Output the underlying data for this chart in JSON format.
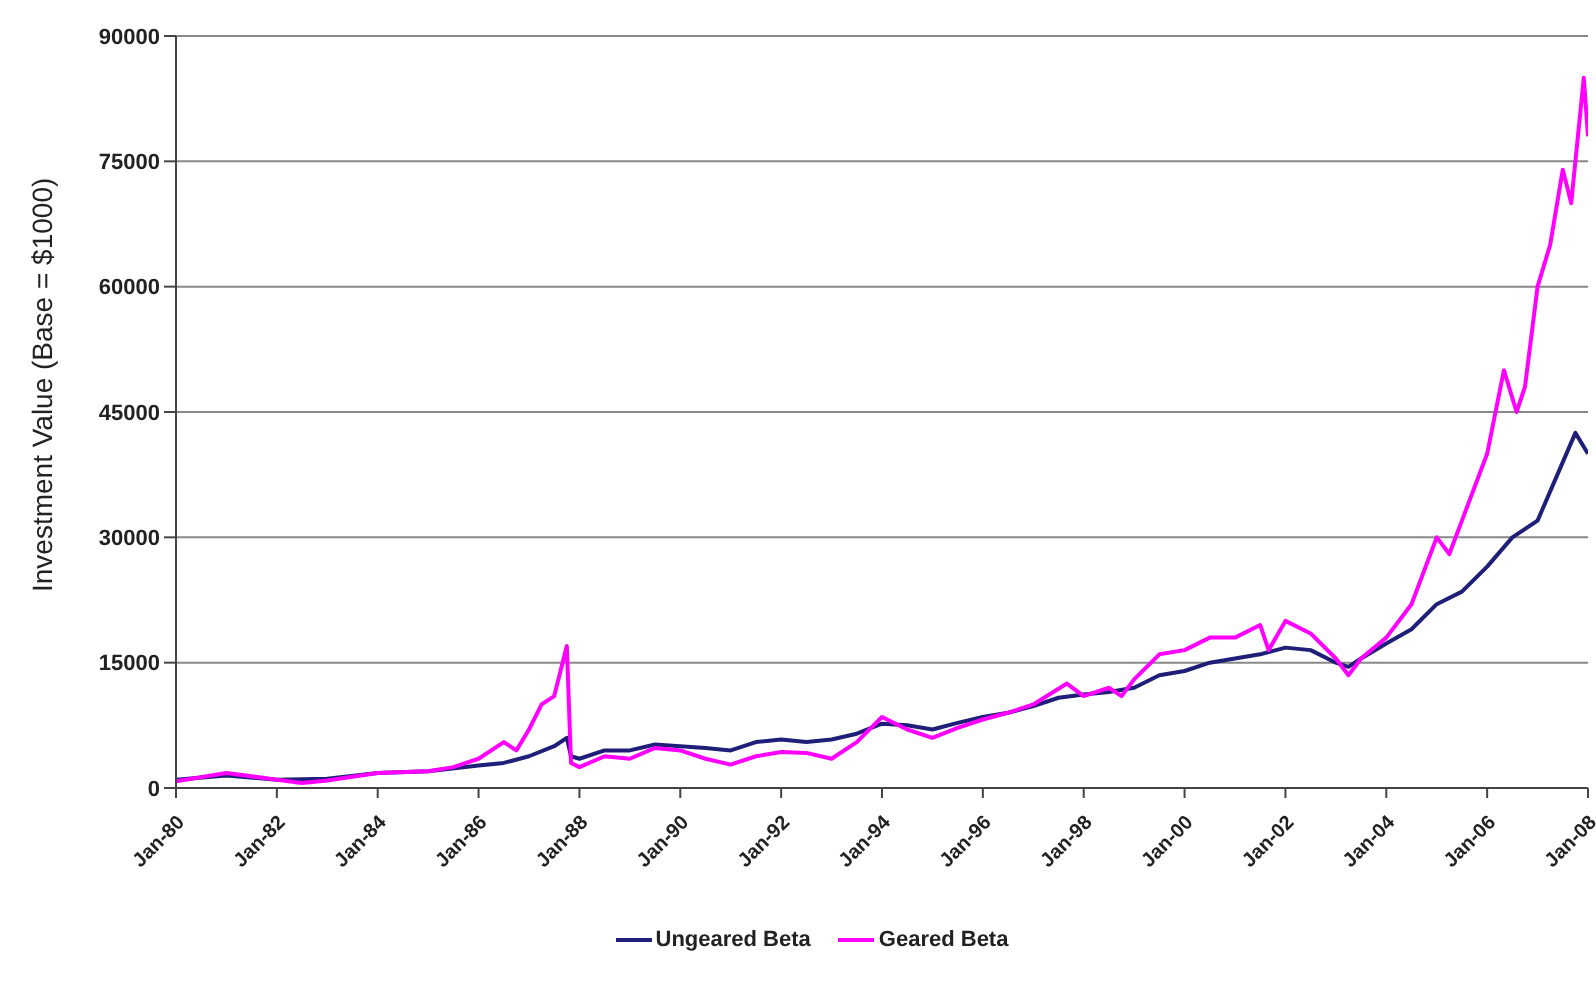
{
  "chart_data": {
    "type": "line",
    "ylabel": "Investment Value (Base = $1000)",
    "xlim": [
      "1980-01",
      "2008-01"
    ],
    "xticks": [
      {
        "value": "1980-01",
        "label": "Jan-80"
      },
      {
        "value": "1982-01",
        "label": "Jan-82"
      },
      {
        "value": "1984-01",
        "label": "Jan-84"
      },
      {
        "value": "1986-01",
        "label": "Jan-86"
      },
      {
        "value": "1988-01",
        "label": "Jan-88"
      },
      {
        "value": "1990-01",
        "label": "Jan-90"
      },
      {
        "value": "1992-01",
        "label": "Jan-92"
      },
      {
        "value": "1994-01",
        "label": "Jan-94"
      },
      {
        "value": "1996-01",
        "label": "Jan-96"
      },
      {
        "value": "1998-01",
        "label": "Jan-98"
      },
      {
        "value": "2000-01",
        "label": "Jan-00"
      },
      {
        "value": "2002-01",
        "label": "Jan-02"
      },
      {
        "value": "2004-01",
        "label": "Jan-04"
      },
      {
        "value": "2006-01",
        "label": "Jan-06"
      },
      {
        "value": "2008-01",
        "label": "Jan-08"
      }
    ],
    "ylim": [
      0,
      90000
    ],
    "yticks": [
      0,
      15000,
      30000,
      45000,
      60000,
      75000,
      90000
    ],
    "grid": "y",
    "legend": "bottom",
    "marker": "none",
    "line_style": "solid",
    "series": [
      {
        "name": "Ungeared Beta",
        "color": "#1f1f7a",
        "x": [
          "1980-01",
          "1981-01",
          "1982-01",
          "1983-01",
          "1984-01",
          "1985-01",
          "1986-01",
          "1986-07",
          "1987-01",
          "1987-07",
          "1987-10",
          "1987-11",
          "1988-01",
          "1988-07",
          "1989-01",
          "1989-07",
          "1990-01",
          "1990-07",
          "1991-01",
          "1991-07",
          "1992-01",
          "1992-07",
          "1993-01",
          "1993-07",
          "1994-01",
          "1994-07",
          "1995-01",
          "1995-07",
          "1996-01",
          "1996-07",
          "1997-01",
          "1997-07",
          "1998-01",
          "1998-07",
          "1999-01",
          "1999-07",
          "2000-01",
          "2000-07",
          "2001-01",
          "2001-07",
          "2002-01",
          "2002-07",
          "2003-01",
          "2003-04",
          "2003-07",
          "2004-01",
          "2004-07",
          "2005-01",
          "2005-07",
          "2006-01",
          "2006-07",
          "2007-01",
          "2007-07",
          "2007-10",
          "2008-01"
        ],
        "values": [
          1000,
          1500,
          1000,
          1100,
          1800,
          2000,
          2700,
          3000,
          3800,
          5000,
          6000,
          3800,
          3500,
          4500,
          4500,
          5200,
          5000,
          4800,
          4500,
          5500,
          5800,
          5500,
          5800,
          6500,
          7700,
          7500,
          7000,
          7800,
          8500,
          9000,
          9800,
          10800,
          11200,
          11500,
          12000,
          13500,
          14000,
          15000,
          15500,
          16000,
          16800,
          16500,
          15000,
          14500,
          15500,
          17300,
          19000,
          22000,
          23500,
          26500,
          30000,
          32000,
          39000,
          42500,
          40000
        ]
      },
      {
        "name": "Geared Beta",
        "color": "#ff00ff",
        "x": [
          "1980-01",
          "1981-01",
          "1982-01",
          "1982-07",
          "1983-01",
          "1984-01",
          "1985-01",
          "1985-07",
          "1986-01",
          "1986-07",
          "1986-10",
          "1987-01",
          "1987-04",
          "1987-07",
          "1987-10",
          "1987-11",
          "1988-01",
          "1988-07",
          "1989-01",
          "1989-07",
          "1990-01",
          "1990-07",
          "1991-01",
          "1991-07",
          "1992-01",
          "1992-07",
          "1993-01",
          "1993-07",
          "1994-01",
          "1994-07",
          "1995-01",
          "1995-07",
          "1996-01",
          "1996-07",
          "1997-01",
          "1997-09",
          "1998-01",
          "1998-07",
          "1998-10",
          "1999-01",
          "1999-07",
          "2000-01",
          "2000-07",
          "2001-01",
          "2001-07",
          "2001-09",
          "2002-01",
          "2002-07",
          "2003-01",
          "2003-04",
          "2003-07",
          "2004-01",
          "2004-07",
          "2005-01",
          "2005-04",
          "2005-07",
          "2006-01",
          "2006-05",
          "2006-08",
          "2006-10",
          "2007-01",
          "2007-04",
          "2007-07",
          "2007-09",
          "2007-12",
          "2008-01"
        ],
        "values": [
          800,
          1800,
          1000,
          600,
          900,
          1800,
          2000,
          2500,
          3500,
          5500,
          4500,
          7000,
          10000,
          11000,
          17000,
          3000,
          2500,
          3800,
          3500,
          4800,
          4500,
          3500,
          2800,
          3800,
          4300,
          4200,
          3500,
          5500,
          8500,
          7000,
          6000,
          7200,
          8200,
          9000,
          10000,
          12500,
          11000,
          12000,
          11000,
          13000,
          16000,
          16500,
          18000,
          18000,
          19500,
          16500,
          20000,
          18500,
          15500,
          13500,
          15500,
          18000,
          22000,
          30000,
          28000,
          32000,
          40000,
          50000,
          45000,
          48000,
          60000,
          65000,
          74000,
          70000,
          85000,
          78000
        ]
      }
    ]
  }
}
